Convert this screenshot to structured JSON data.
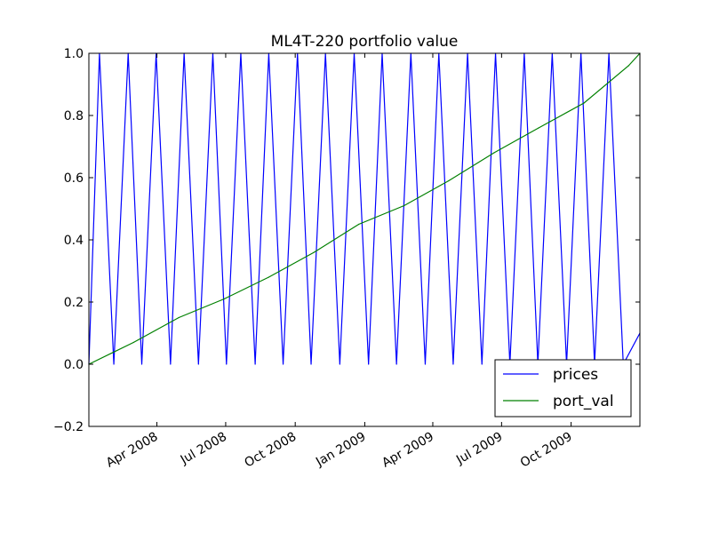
{
  "chart_data": {
    "type": "line",
    "title": "ML4T-220 portfolio value",
    "xlabel": "",
    "ylabel": "",
    "x_range": [
      "2008-01-02",
      "2009-12-31"
    ],
    "ylim": [
      -0.2,
      1.0
    ],
    "y_ticks": [
      -0.2,
      0.0,
      0.2,
      0.4,
      0.6,
      0.8,
      1.0
    ],
    "y_tick_labels": [
      "−0.2",
      "0.0",
      "0.2",
      "0.4",
      "0.6",
      "0.8",
      "1.0"
    ],
    "x_ticks": [
      {
        "date": "2008-04-01",
        "label": "Apr 2008"
      },
      {
        "date": "2008-07-01",
        "label": "Jul 2008"
      },
      {
        "date": "2008-10-01",
        "label": "Oct 2008"
      },
      {
        "date": "2009-01-01",
        "label": "Jan 2009"
      },
      {
        "date": "2009-04-01",
        "label": "Apr 2009"
      },
      {
        "date": "2009-07-01",
        "label": "Jul 2009"
      },
      {
        "date": "2009-10-01",
        "label": "Oct 2009"
      }
    ],
    "grid": false,
    "legend_position": "lower-right",
    "series": [
      {
        "name": "prices",
        "color": "#0000ff",
        "x": [
          "2008-01-02",
          "2008-01-16",
          "2008-02-04",
          "2008-02-23",
          "2008-03-12",
          "2008-03-31",
          "2008-04-19",
          "2008-05-07",
          "2008-05-26",
          "2008-06-14",
          "2008-07-02",
          "2008-07-21",
          "2008-08-09",
          "2008-08-27",
          "2008-09-15",
          "2008-10-04",
          "2008-10-22",
          "2008-11-10",
          "2008-11-29",
          "2008-12-18",
          "2009-01-06",
          "2009-01-24",
          "2009-02-12",
          "2009-03-03",
          "2009-03-22",
          "2009-04-09",
          "2009-04-28",
          "2009-05-17",
          "2009-06-05",
          "2009-06-23",
          "2009-07-12",
          "2009-07-31",
          "2009-08-18",
          "2009-09-06",
          "2009-09-25",
          "2009-10-14",
          "2009-11-01",
          "2009-11-20",
          "2009-12-09",
          "2009-12-31"
        ],
        "y": [
          0.0,
          1.0,
          0.0,
          1.0,
          0.0,
          1.0,
          0.0,
          1.0,
          0.0,
          1.0,
          0.0,
          1.0,
          0.0,
          1.0,
          0.0,
          1.0,
          0.0,
          1.0,
          0.0,
          1.0,
          0.0,
          1.0,
          0.0,
          1.0,
          0.0,
          1.0,
          0.0,
          1.0,
          0.0,
          1.0,
          0.0,
          1.0,
          0.0,
          1.0,
          0.0,
          1.0,
          0.0,
          1.0,
          0.0,
          0.1
        ]
      },
      {
        "name": "port_val",
        "color": "#008000",
        "x": [
          "2008-01-02",
          "2008-03-01",
          "2008-04-30",
          "2008-06-29",
          "2008-08-27",
          "2008-10-26",
          "2008-12-24",
          "2009-02-22",
          "2009-04-22",
          "2009-06-21",
          "2009-08-19",
          "2009-10-18",
          "2009-12-16",
          "2009-12-31"
        ],
        "y": [
          0.0,
          0.07,
          0.15,
          0.21,
          0.28,
          0.36,
          0.45,
          0.51,
          0.59,
          0.68,
          0.76,
          0.84,
          0.96,
          1.0
        ]
      }
    ]
  }
}
